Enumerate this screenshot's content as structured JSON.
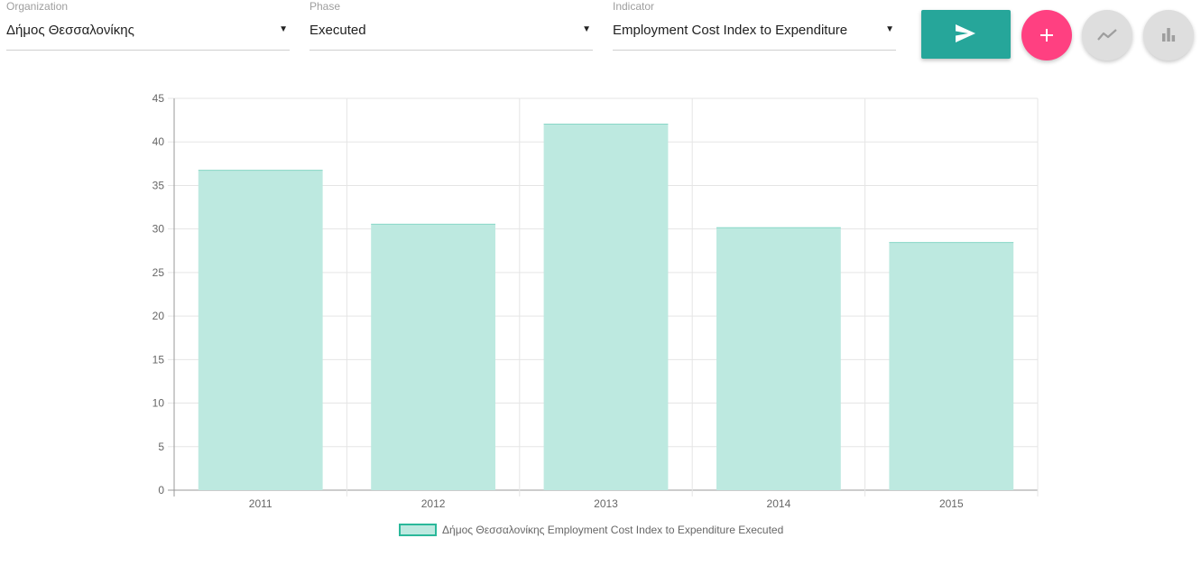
{
  "filters": {
    "organization": {
      "label": "Organization",
      "value": "Δήμος Θεσσαλονίκης"
    },
    "phase": {
      "label": "Phase",
      "value": "Executed"
    },
    "indicator": {
      "label": "Indicator",
      "value": "Employment Cost Index to Expenditure"
    },
    "caret": "▼"
  },
  "buttons": {
    "send": {
      "icon": "send-icon",
      "color": "#26a69a"
    },
    "add": {
      "icon": "plus-icon",
      "color": "#ff4081"
    },
    "line_chart": {
      "icon": "line-chart-icon",
      "color": "#dedede"
    },
    "bar_chart": {
      "icon": "bar-chart-icon",
      "color": "#dedede"
    }
  },
  "chart_data": {
    "type": "bar",
    "categories": [
      "2011",
      "2012",
      "2013",
      "2014",
      "2015"
    ],
    "series": [
      {
        "name": "Δήμος Θεσσαλονίκης Employment Cost Index to Expenditure Executed",
        "values": [
          36.8,
          30.6,
          42.1,
          30.2,
          28.5
        ],
        "fill_color": "#bde9e0",
        "border_color": "#2bb89a"
      }
    ],
    "ylim": [
      0,
      45
    ],
    "yticks": [
      "0",
      "5",
      "10",
      "15",
      "20",
      "25",
      "30",
      "35",
      "40",
      "45"
    ],
    "grid": true,
    "legend_position": "bottom"
  },
  "legend": {
    "label": "Δήμος Θεσσαλονίκης Employment Cost Index to Expenditure Executed"
  }
}
